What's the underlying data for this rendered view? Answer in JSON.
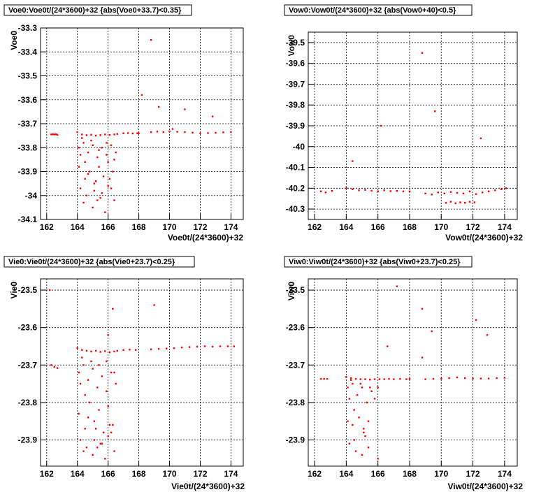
{
  "chart_data": [
    {
      "type": "scatter",
      "title": "Voe0:Voe0t/(24*3600)+32 {abs(Voe0+33.7)<0.35}",
      "xlabel": "Voe0t/(24*3600)+32",
      "ylabel": "Voe0",
      "xlim": [
        161.6,
        174.8
      ],
      "ylim": [
        -34.1,
        -33.3
      ],
      "xticks": [
        162,
        164,
        166,
        168,
        170,
        172,
        174
      ],
      "yticks": [
        -33.3,
        -33.4,
        -33.5,
        -33.6,
        -33.7,
        -33.8,
        -33.9,
        -34,
        -34.1
      ],
      "xtick_labels": [
        "162",
        "164",
        "166",
        "168",
        "170",
        "172",
        "174"
      ],
      "ytick_labels": [
        "-33.3",
        "-33.4",
        "-33.5",
        "-33.6",
        "-33.7",
        "-33.8",
        "-33.9",
        "-34",
        "-34.1"
      ],
      "grid": true,
      "color": "#ff0000",
      "series": [
        {
          "x": [
            162.3,
            162.4,
            162.5,
            162.6,
            162.7
          ],
          "y": [
            -33.745,
            -33.744,
            -33.745,
            -33.744,
            -33.746
          ]
        },
        {
          "x": [
            164.0,
            164.3,
            164.6,
            164.9,
            165.2,
            165.5,
            165.8,
            166.1,
            166.4,
            166.6
          ],
          "y": [
            -33.735,
            -33.745,
            -33.748,
            -33.746,
            -33.75,
            -33.748,
            -33.745,
            -33.747,
            -33.745,
            -33.743
          ]
        },
        {
          "x": [
            167.0,
            167.3,
            167.6,
            167.9,
            168.0
          ],
          "y": [
            -33.74,
            -33.739,
            -33.741,
            -33.74,
            -33.74
          ]
        },
        {
          "x": [
            168.8,
            169.2,
            169.6,
            170.0,
            170.2,
            170.5,
            171.0,
            171.5,
            172.0,
            172.5,
            173.0,
            173.5,
            174.0
          ],
          "y": [
            -33.735,
            -33.733,
            -33.735,
            -33.732,
            -33.722,
            -33.734,
            -33.735,
            -33.737,
            -33.74,
            -33.739,
            -33.738,
            -33.736,
            -33.735
          ]
        },
        {
          "x": [
            164.1,
            164.2,
            164.4,
            164.5,
            164.7,
            164.8,
            165.0,
            165.1,
            165.3,
            165.4,
            165.6,
            165.7,
            165.9,
            166.0,
            166.2,
            166.3,
            166.5,
            164.2,
            164.6,
            165.2,
            165.6,
            166.0,
            166.4,
            164.3,
            164.9,
            165.4,
            165.9,
            166.4,
            164.1,
            164.5,
            165.0,
            165.5,
            166.1,
            164.4,
            165.1,
            165.8,
            164.7,
            165.3,
            166.2
          ],
          "y": [
            -33.8,
            -33.83,
            -33.78,
            -33.86,
            -33.82,
            -33.9,
            -33.79,
            -33.95,
            -33.84,
            -33.88,
            -33.8,
            -33.92,
            -33.83,
            -33.86,
            -33.79,
            -33.9,
            -33.82,
            -33.97,
            -34.0,
            -33.94,
            -33.99,
            -33.96,
            -34.02,
            -33.76,
            -33.77,
            -33.81,
            -33.78,
            -33.85,
            -33.88,
            -33.93,
            -34.05,
            -34.01,
            -33.93,
            -34.03,
            -33.98,
            -34.07,
            -33.91,
            -34.02,
            -33.97
          ]
        },
        {
          "x": [
            168.8,
            169.3,
            172.8,
            171.0,
            168.2
          ],
          "y": [
            -33.35,
            -33.63,
            -33.67,
            -33.64,
            -33.58
          ]
        }
      ]
    },
    {
      "type": "scatter",
      "title": "Vow0:Vow0t/(24*3600)+32 {abs(Vow0+40)<0.5}",
      "xlabel": "Vow0t/(24*3600)+32",
      "ylabel": "Vow0",
      "xlim": [
        161.6,
        174.8
      ],
      "ylim": [
        -40.35,
        -39.45
      ],
      "xticks": [
        162,
        164,
        166,
        168,
        170,
        172,
        174
      ],
      "yticks": [
        -39.5,
        -39.6,
        -39.7,
        -39.8,
        -39.9,
        -40,
        -40.1,
        -40.2,
        -40.3
      ],
      "xtick_labels": [
        "162",
        "164",
        "166",
        "168",
        "170",
        "172",
        "174"
      ],
      "ytick_labels": [
        "-39.5",
        "-39.6",
        "-39.7",
        "-39.8",
        "-39.9",
        "-40",
        "-40.1",
        "-40.2",
        "-40.3"
      ],
      "grid": true,
      "color": "#ff0000",
      "series": [
        {
          "x": [
            162.4,
            162.7,
            163.1
          ],
          "y": [
            -40.215,
            -40.22,
            -40.213
          ]
        },
        {
          "x": [
            164.0,
            164.4,
            164.8,
            165.2,
            165.6,
            166.0,
            166.4,
            166.8,
            167.2,
            167.6,
            168.0
          ],
          "y": [
            -40.2,
            -40.205,
            -40.21,
            -40.208,
            -40.212,
            -40.215,
            -40.21,
            -40.214,
            -40.213,
            -40.215,
            -40.215
          ]
        },
        {
          "x": [
            169.0,
            169.4,
            169.8,
            170.2,
            170.6,
            171.0,
            171.4,
            171.8,
            172.2,
            172.6,
            173.0,
            173.4,
            173.8,
            174.1
          ],
          "y": [
            -40.225,
            -40.23,
            -40.22,
            -40.225,
            -40.218,
            -40.222,
            -40.225,
            -40.215,
            -40.228,
            -40.22,
            -40.215,
            -40.21,
            -40.205,
            -40.2
          ]
        },
        {
          "x": [
            170.3,
            170.6,
            170.9,
            171.2,
            171.5,
            171.8,
            172.1
          ],
          "y": [
            -40.27,
            -40.265,
            -40.272,
            -40.268,
            -40.27,
            -40.265,
            -40.268
          ]
        },
        {
          "x": [
            168.8,
            169.6,
            166.2,
            172.5,
            164.4
          ],
          "y": [
            -39.55,
            -39.83,
            -39.9,
            -39.96,
            -40.07
          ]
        }
      ]
    },
    {
      "type": "scatter",
      "title": "Vie0:Vie0t/(24*3600)+32 {abs(Vie0+23.7)<0.25}",
      "xlabel": "Vie0t/(24*3600)+32",
      "ylabel": "Vie0",
      "xlim": [
        161.6,
        174.8
      ],
      "ylim": [
        -23.97,
        -23.47
      ],
      "xticks": [
        162,
        164,
        166,
        168,
        170,
        172,
        174
      ],
      "yticks": [
        -23.5,
        -23.6,
        -23.7,
        -23.8,
        -23.9
      ],
      "xtick_labels": [
        "162",
        "164",
        "166",
        "168",
        "170",
        "172",
        "174"
      ],
      "ytick_labels": [
        "-23.5",
        "-23.6",
        "-23.7",
        "-23.8",
        "-23.9"
      ],
      "grid": true,
      "color": "#ff0000",
      "series": [
        {
          "x": [
            162.3,
            162.5,
            162.7
          ],
          "y": [
            -23.7,
            -23.705,
            -23.708
          ]
        },
        {
          "x": [
            164.0,
            164.3,
            164.6,
            164.9,
            165.2,
            165.5,
            165.8,
            166.1,
            166.4,
            166.6
          ],
          "y": [
            -23.655,
            -23.66,
            -23.662,
            -23.664,
            -23.662,
            -23.665,
            -23.663,
            -23.666,
            -23.664,
            -23.662
          ]
        },
        {
          "x": [
            167.0,
            167.4,
            167.8
          ],
          "y": [
            -23.66,
            -23.659,
            -23.66
          ]
        },
        {
          "x": [
            168.8,
            169.3,
            169.8,
            170.3,
            170.8,
            171.3,
            171.8,
            172.3,
            172.8,
            173.3,
            173.8,
            174.2
          ],
          "y": [
            -23.658,
            -23.657,
            -23.656,
            -23.655,
            -23.653,
            -23.652,
            -23.651,
            -23.65,
            -23.651,
            -23.65,
            -23.65,
            -23.65
          ]
        },
        {
          "x": [
            164.1,
            164.2,
            164.4,
            164.5,
            164.7,
            164.8,
            165.0,
            165.1,
            165.3,
            165.4,
            165.6,
            165.7,
            165.9,
            166.0,
            166.2,
            166.3,
            166.5,
            164.2,
            164.6,
            165.2,
            165.6,
            166.0,
            166.4,
            164.3,
            164.9,
            165.4,
            165.9,
            166.4,
            164.1,
            164.5,
            165.0,
            165.5,
            166.1,
            164.4,
            165.1,
            165.8,
            164.7,
            165.3,
            166.2
          ],
          "y": [
            -23.72,
            -23.75,
            -23.7,
            -23.78,
            -23.74,
            -23.8,
            -23.71,
            -23.85,
            -23.76,
            -23.82,
            -23.73,
            -23.88,
            -23.77,
            -23.81,
            -23.72,
            -23.86,
            -23.75,
            -23.9,
            -23.92,
            -23.87,
            -23.91,
            -23.89,
            -23.93,
            -23.68,
            -23.69,
            -23.7,
            -23.69,
            -23.72,
            -23.83,
            -23.87,
            -23.94,
            -23.91,
            -23.86,
            -23.93,
            -23.9,
            -23.95,
            -23.84,
            -23.92,
            -23.88
          ]
        },
        {
          "x": [
            162.2,
            166.3,
            169.0,
            166.0
          ],
          "y": [
            -23.5,
            -23.55,
            -23.54,
            -23.62
          ]
        }
      ]
    },
    {
      "type": "scatter",
      "title": "Viw0:Viw0t/(24*3600)+32 {abs(Viw0+23.7)<0.25}",
      "xlabel": "Viw0t/(24*3600)+32",
      "ylabel": "Viw0",
      "xlim": [
        161.6,
        174.8
      ],
      "ylim": [
        -23.97,
        -23.47
      ],
      "xticks": [
        162,
        164,
        166,
        168,
        170,
        172,
        174
      ],
      "yticks": [
        -23.5,
        -23.6,
        -23.7,
        -23.8,
        -23.9
      ],
      "xtick_labels": [
        "162",
        "164",
        "166",
        "168",
        "170",
        "172",
        "174"
      ],
      "ytick_labels": [
        "-23.5",
        "-23.6",
        "-23.7",
        "-23.8",
        "-23.9"
      ],
      "grid": true,
      "color": "#ff0000",
      "series": [
        {
          "x": [
            162.4,
            162.6,
            162.8
          ],
          "y": [
            -23.737,
            -23.737,
            -23.737
          ]
        },
        {
          "x": [
            164.0,
            164.3,
            164.6,
            164.9,
            165.2,
            165.5,
            165.8,
            166.1,
            166.4,
            166.7,
            167.0,
            167.4,
            167.8,
            168.0
          ],
          "y": [
            -23.732,
            -23.735,
            -23.737,
            -23.738,
            -23.738,
            -23.739,
            -23.738,
            -23.738,
            -23.738,
            -23.737,
            -23.738,
            -23.737,
            -23.738,
            -23.737
          ]
        },
        {
          "x": [
            169.0,
            169.5,
            170.0,
            170.5,
            171.0,
            171.5,
            172.0,
            172.5,
            173.0,
            173.5,
            174.0
          ],
          "y": [
            -23.738,
            -23.737,
            -23.736,
            -23.735,
            -23.733,
            -23.735,
            -23.736,
            -23.736,
            -23.736,
            -23.735,
            -23.734
          ]
        },
        {
          "x": [
            164.1,
            164.2,
            164.4,
            164.5,
            164.7,
            164.8,
            165.0,
            165.1,
            165.3,
            165.4,
            165.6,
            165.8,
            166.0,
            164.2,
            164.6,
            165.2,
            164.3,
            164.9,
            165.5,
            164.1,
            164.5,
            165.0,
            165.4,
            164.4,
            165.1,
            166.0
          ],
          "y": [
            -23.76,
            -23.79,
            -23.75,
            -23.82,
            -23.78,
            -23.84,
            -23.76,
            -23.88,
            -23.8,
            -23.85,
            -23.77,
            -23.79,
            -23.76,
            -23.91,
            -23.93,
            -23.89,
            -23.74,
            -23.75,
            -23.76,
            -23.85,
            -23.9,
            -23.94,
            -23.92,
            -23.86,
            -23.87,
            -23.95
          ]
        },
        {
          "x": [
            167.2,
            168.8,
            169.4,
            172.2,
            172.9,
            166.6,
            168.8
          ],
          "y": [
            -23.49,
            -23.55,
            -23.61,
            -23.58,
            -23.62,
            -23.65,
            -23.68
          ]
        }
      ]
    }
  ]
}
